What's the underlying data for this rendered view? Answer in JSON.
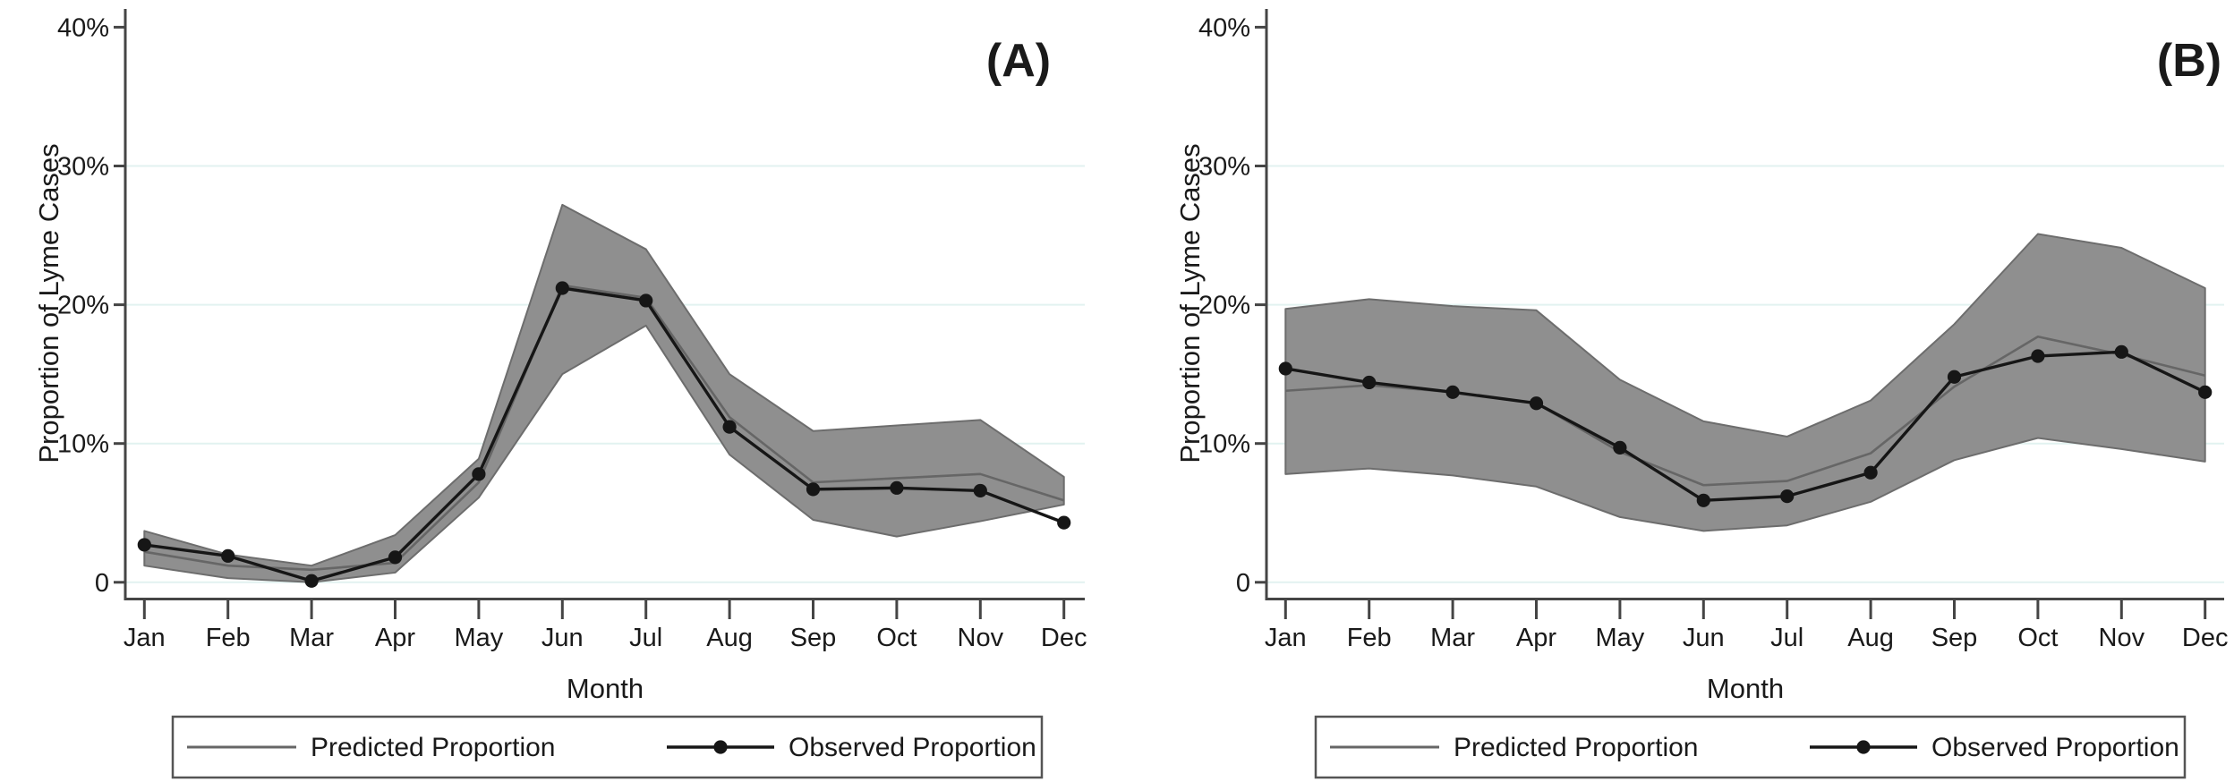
{
  "figure": {
    "description": "Two-panel seasonal line chart of Lyme disease case proportions with 95% confidence bands",
    "colors": {
      "background": "#ffffff",
      "band": "#8f8f8f",
      "band_edge": "#6d6d6d",
      "predicted_line": "#666666",
      "observed_line": "#161616",
      "gridline": "#e2f2f0",
      "axis": "#454545",
      "text": "#1a1a1a",
      "legend_border": "#555555"
    }
  },
  "chart_data": [
    {
      "type": "line",
      "panel_label": "(A)",
      "categories": [
        "Jan",
        "Feb",
        "Mar",
        "Apr",
        "May",
        "Jun",
        "Jul",
        "Aug",
        "Sep",
        "Oct",
        "Nov",
        "Dec"
      ],
      "series": [
        {
          "name": "Predicted Proportion",
          "values": [
            2.2,
            1.2,
            0.9,
            1.4,
            7.2,
            21.4,
            20.5,
            11.9,
            7.2,
            7.5,
            7.8,
            5.9
          ]
        },
        {
          "name": "Observed Proportion",
          "values": [
            2.7,
            1.9,
            0.1,
            1.8,
            7.8,
            21.2,
            20.3,
            11.2,
            6.7,
            6.8,
            6.6,
            4.3
          ]
        }
      ],
      "confidence_band": {
        "upper": [
          3.7,
          2.0,
          1.2,
          3.4,
          8.9,
          27.2,
          24.0,
          15.0,
          10.9,
          11.3,
          11.7,
          7.6
        ],
        "lower": [
          1.2,
          0.3,
          0.0,
          0.7,
          6.1,
          15.0,
          18.5,
          9.2,
          4.5,
          3.3,
          4.4,
          5.6
        ]
      },
      "xlabel": "Month",
      "ylabel": "Proportion of Lyme Cases",
      "ytick_labels": [
        "0",
        "10%",
        "20%",
        "30%",
        "40%"
      ],
      "ytick_values": [
        0,
        10,
        20,
        30,
        40
      ],
      "gridlines": [
        0,
        10,
        20,
        30
      ],
      "ylim": [
        -1.2,
        41.3
      ],
      "legend_position": "bottom",
      "legend": [
        "Predicted Proportion",
        "Observed Proportion"
      ]
    },
    {
      "type": "line",
      "panel_label": "(B)",
      "categories": [
        "Jan",
        "Feb",
        "Mar",
        "Apr",
        "May",
        "Jun",
        "Jul",
        "Aug",
        "Sep",
        "Oct",
        "Nov",
        "Dec"
      ],
      "series": [
        {
          "name": "Predicted Proportion",
          "values": [
            13.8,
            14.2,
            13.7,
            12.9,
            9.4,
            7.0,
            7.3,
            9.3,
            14.1,
            17.7,
            16.4,
            14.9
          ]
        },
        {
          "name": "Observed Proportion",
          "values": [
            15.4,
            14.4,
            13.7,
            12.9,
            9.7,
            5.9,
            6.2,
            7.9,
            14.8,
            16.3,
            16.6,
            13.7
          ]
        }
      ],
      "confidence_band": {
        "upper": [
          19.7,
          20.4,
          19.9,
          19.6,
          14.6,
          11.6,
          10.5,
          13.1,
          18.6,
          25.1,
          24.1,
          21.2
        ],
        "lower": [
          7.8,
          8.2,
          7.7,
          6.9,
          4.7,
          3.7,
          4.1,
          5.8,
          8.8,
          10.4,
          9.6,
          8.7
        ]
      },
      "xlabel": "Month",
      "ylabel": "Proportion of Lyme Cases",
      "ytick_labels": [
        "0",
        "10%",
        "20%",
        "30%",
        "40%"
      ],
      "ytick_values": [
        0,
        10,
        20,
        30,
        40
      ],
      "gridlines": [
        0,
        10,
        20,
        30
      ],
      "ylim": [
        -1.2,
        41.3
      ],
      "legend_position": "bottom",
      "legend": [
        "Predicted Proportion",
        "Observed Proportion"
      ]
    }
  ]
}
